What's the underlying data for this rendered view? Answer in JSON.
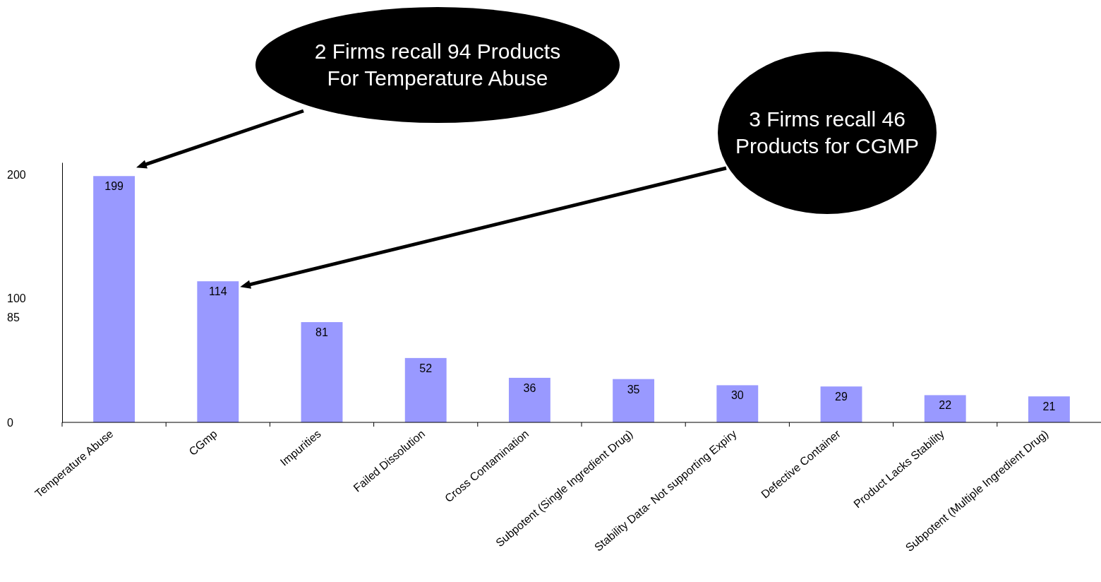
{
  "chart_data": {
    "type": "bar",
    "categories": [
      "Temperature Abuse",
      "CGmp",
      "Impurities",
      "Failed Dissolution",
      "Cross Contamination",
      "Subpotent (Single Ingredient Drug)",
      "Stability Data- Not supporting Expiry",
      "Defective Container",
      "Product Lacks Stability",
      "Subpotent (Multiple Ingredient Drug)"
    ],
    "values": [
      199,
      114,
      81,
      52,
      36,
      35,
      30,
      29,
      22,
      21
    ],
    "color": "#9999ff",
    "ylim": [
      0,
      210
    ],
    "yticks": [
      0,
      85,
      100,
      200
    ],
    "data_labels": true,
    "grid": false,
    "annotations": [
      "2 Firms recall 94 Products\nFor Temperature Abuse",
      "3 Firms recall 46\nProducts for CGMP"
    ]
  }
}
